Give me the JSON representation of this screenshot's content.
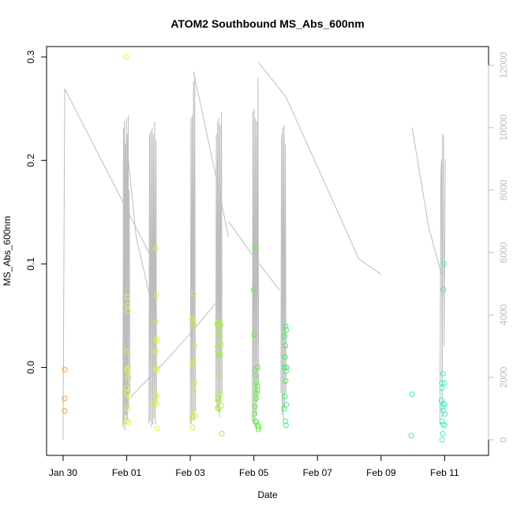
{
  "chart_data": {
    "type": "scatter",
    "title": "ATOM2 Southbound MS_Abs_600nm",
    "xlabel": "Date",
    "ylabel": "MS_Abs_600nm",
    "x_axis": {
      "unit": "days from Jan 28",
      "range": [
        1.48,
        15.38
      ],
      "ticks": [
        {
          "value": 2,
          "label": "Jan 30"
        },
        {
          "value": 4,
          "label": "Feb 01"
        },
        {
          "value": 6,
          "label": "Feb 03"
        },
        {
          "value": 8,
          "label": "Feb 05"
        },
        {
          "value": 10,
          "label": "Feb 07"
        },
        {
          "value": 12,
          "label": "Feb 09"
        },
        {
          "value": 14,
          "label": "Feb 11"
        }
      ]
    },
    "y_axis": {
      "range": [
        -0.085,
        0.31
      ],
      "ticks": [
        {
          "value": 0.0,
          "label": "0.0"
        },
        {
          "value": 0.1,
          "label": "0.1"
        },
        {
          "value": 0.2,
          "label": "0.2"
        },
        {
          "value": 0.3,
          "label": "0.3"
        }
      ]
    },
    "y2_axis": {
      "range": [
        -500,
        12600
      ],
      "color": "#bdbdbd",
      "ticks": [
        {
          "value": 0,
          "label": "0"
        },
        {
          "value": 2000,
          "label": "2000"
        },
        {
          "value": 4000,
          "label": "4000"
        },
        {
          "value": 6000,
          "label": "6000"
        },
        {
          "value": 8000,
          "label": "8000"
        },
        {
          "value": 10000,
          "label": "10000"
        },
        {
          "value": 12000,
          "label": "12000"
        }
      ]
    },
    "grid": false,
    "points": [
      {
        "x": 2.05,
        "y": -0.002,
        "color": "#f0a040"
      },
      {
        "x": 2.05,
        "y": -0.03,
        "color": "#f0a040"
      },
      {
        "x": 2.05,
        "y": -0.042,
        "color": "#f0a040"
      },
      {
        "x": 3.99,
        "y": 0.3,
        "color": "#e8f040"
      },
      {
        "x": 4.02,
        "y": 0.068,
        "color": "#e8f040"
      },
      {
        "x": 4.03,
        "y": 0.06,
        "color": "#e8f040"
      },
      {
        "x": 4.04,
        "y": 0.055,
        "color": "#e8f040"
      },
      {
        "x": 4.0,
        "y": 0.015,
        "color": "#e8f040"
      },
      {
        "x": 4.05,
        "y": 0.0,
        "color": "#e8f040"
      },
      {
        "x": 4.01,
        "y": -0.002,
        "color": "#e8f040"
      },
      {
        "x": 4.03,
        "y": -0.004,
        "color": "#e8f040"
      },
      {
        "x": 4.06,
        "y": -0.01,
        "color": "#e8f040"
      },
      {
        "x": 3.99,
        "y": -0.02,
        "color": "#e8f040"
      },
      {
        "x": 4.02,
        "y": -0.025,
        "color": "#e8f040"
      },
      {
        "x": 4.08,
        "y": -0.028,
        "color": "#e8f040"
      },
      {
        "x": 4.05,
        "y": -0.04,
        "color": "#e8f040"
      },
      {
        "x": 4.0,
        "y": -0.052,
        "color": "#e8f040"
      },
      {
        "x": 4.06,
        "y": -0.053,
        "color": "#e8f040"
      },
      {
        "x": 4.93,
        "y": 0.115,
        "color": "#dcf040"
      },
      {
        "x": 4.94,
        "y": 0.07,
        "color": "#dcf040"
      },
      {
        "x": 4.92,
        "y": 0.044,
        "color": "#dcf040"
      },
      {
        "x": 4.95,
        "y": 0.028,
        "color": "#dcf040"
      },
      {
        "x": 4.94,
        "y": 0.025,
        "color": "#dcf040"
      },
      {
        "x": 4.93,
        "y": 0.016,
        "color": "#dcf040"
      },
      {
        "x": 4.92,
        "y": 0.0,
        "color": "#dcf040"
      },
      {
        "x": 4.95,
        "y": -0.003,
        "color": "#dcf040"
      },
      {
        "x": 4.91,
        "y": -0.027,
        "color": "#dcf040"
      },
      {
        "x": 4.94,
        "y": -0.028,
        "color": "#dcf040"
      },
      {
        "x": 4.9,
        "y": -0.034,
        "color": "#dcf040"
      },
      {
        "x": 4.93,
        "y": -0.036,
        "color": "#dcf040"
      },
      {
        "x": 4.95,
        "y": -0.059,
        "color": "#dcf040"
      },
      {
        "x": 6.1,
        "y": 0.071,
        "color": "#c8f040"
      },
      {
        "x": 6.05,
        "y": 0.046,
        "color": "#c8f040"
      },
      {
        "x": 6.08,
        "y": 0.047,
        "color": "#c8f040"
      },
      {
        "x": 6.12,
        "y": 0.04,
        "color": "#c8f040"
      },
      {
        "x": 6.15,
        "y": 0.021,
        "color": "#c8f040"
      },
      {
        "x": 6.07,
        "y": 0.004,
        "color": "#c8f040"
      },
      {
        "x": 6.09,
        "y": 0.005,
        "color": "#c8f040"
      },
      {
        "x": 6.14,
        "y": -0.015,
        "color": "#c8f040"
      },
      {
        "x": 6.11,
        "y": -0.023,
        "color": "#c8f040"
      },
      {
        "x": 6.1,
        "y": -0.041,
        "color": "#c8f040"
      },
      {
        "x": 6.06,
        "y": -0.048,
        "color": "#c8f040"
      },
      {
        "x": 6.09,
        "y": -0.047,
        "color": "#c8f040"
      },
      {
        "x": 6.16,
        "y": -0.047,
        "color": "#c8f040"
      },
      {
        "x": 6.07,
        "y": -0.058,
        "color": "#c8f040"
      },
      {
        "x": 6.85,
        "y": 0.042,
        "color": "#a8f040"
      },
      {
        "x": 6.88,
        "y": 0.044,
        "color": "#a8f040"
      },
      {
        "x": 6.92,
        "y": 0.043,
        "color": "#a8f040"
      },
      {
        "x": 6.96,
        "y": 0.041,
        "color": "#a8f040"
      },
      {
        "x": 6.9,
        "y": 0.035,
        "color": "#a8f040"
      },
      {
        "x": 6.93,
        "y": 0.03,
        "color": "#a8f040"
      },
      {
        "x": 6.86,
        "y": 0.02,
        "color": "#a8f040"
      },
      {
        "x": 6.98,
        "y": 0.022,
        "color": "#a8f040"
      },
      {
        "x": 6.89,
        "y": 0.012,
        "color": "#a8f040"
      },
      {
        "x": 6.94,
        "y": 0.012,
        "color": "#a8f040"
      },
      {
        "x": 6.91,
        "y": -0.008,
        "color": "#a8f040"
      },
      {
        "x": 6.95,
        "y": -0.026,
        "color": "#a8f040"
      },
      {
        "x": 6.87,
        "y": -0.03,
        "color": "#a8f040"
      },
      {
        "x": 6.9,
        "y": -0.033,
        "color": "#a8f040"
      },
      {
        "x": 6.97,
        "y": -0.037,
        "color": "#a8f040"
      },
      {
        "x": 6.86,
        "y": -0.039,
        "color": "#a8f040"
      },
      {
        "x": 6.88,
        "y": -0.04,
        "color": "#a8f040"
      },
      {
        "x": 6.99,
        "y": -0.064,
        "color": "#a8f040"
      },
      {
        "x": 8.03,
        "y": 0.116,
        "color": "#60f040"
      },
      {
        "x": 7.99,
        "y": 0.075,
        "color": "#60f040"
      },
      {
        "x": 8.01,
        "y": 0.032,
        "color": "#60f040"
      },
      {
        "x": 8.03,
        "y": -0.002,
        "color": "#60f040"
      },
      {
        "x": 8.12,
        "y": 0.0,
        "color": "#60f040"
      },
      {
        "x": 8.06,
        "y": -0.008,
        "color": "#60f040"
      },
      {
        "x": 8.08,
        "y": -0.015,
        "color": "#60f040"
      },
      {
        "x": 8.1,
        "y": -0.018,
        "color": "#60f040"
      },
      {
        "x": 8.11,
        "y": -0.022,
        "color": "#60f040"
      },
      {
        "x": 8.09,
        "y": -0.025,
        "color": "#60f040"
      },
      {
        "x": 8.07,
        "y": -0.03,
        "color": "#60f040"
      },
      {
        "x": 8.04,
        "y": -0.038,
        "color": "#60f040"
      },
      {
        "x": 8.02,
        "y": -0.045,
        "color": "#60f040"
      },
      {
        "x": 8.05,
        "y": -0.052,
        "color": "#60f040"
      },
      {
        "x": 8.08,
        "y": -0.053,
        "color": "#60f040"
      },
      {
        "x": 8.13,
        "y": -0.056,
        "color": "#60f040"
      },
      {
        "x": 8.15,
        "y": -0.058,
        "color": "#60f040"
      },
      {
        "x": 8.14,
        "y": -0.06,
        "color": "#60f040"
      },
      {
        "x": 9.0,
        "y": 0.04,
        "color": "#40f068"
      },
      {
        "x": 9.02,
        "y": 0.036,
        "color": "#40f068"
      },
      {
        "x": 8.96,
        "y": 0.03,
        "color": "#40f068"
      },
      {
        "x": 8.99,
        "y": 0.021,
        "color": "#40f068"
      },
      {
        "x": 8.98,
        "y": 0.01,
        "color": "#40f068"
      },
      {
        "x": 8.97,
        "y": 0.0,
        "color": "#40f068"
      },
      {
        "x": 9.03,
        "y": 0.0,
        "color": "#40f068"
      },
      {
        "x": 9.01,
        "y": -0.004,
        "color": "#40f068"
      },
      {
        "x": 9.0,
        "y": -0.013,
        "color": "#40f068"
      },
      {
        "x": 8.98,
        "y": -0.028,
        "color": "#40f068"
      },
      {
        "x": 9.02,
        "y": -0.036,
        "color": "#40f068"
      },
      {
        "x": 8.95,
        "y": -0.04,
        "color": "#40f068"
      },
      {
        "x": 8.99,
        "y": -0.052,
        "color": "#40f068"
      },
      {
        "x": 9.01,
        "y": -0.056,
        "color": "#40f068"
      },
      {
        "x": 12.98,
        "y": -0.026,
        "color": "#40f0a0"
      },
      {
        "x": 12.95,
        "y": -0.066,
        "color": "#40f0a0"
      },
      {
        "x": 13.98,
        "y": 0.1,
        "color": "#40f0c0"
      },
      {
        "x": 13.96,
        "y": 0.075,
        "color": "#40f0c0"
      },
      {
        "x": 13.95,
        "y": -0.006,
        "color": "#40f0c0"
      },
      {
        "x": 13.91,
        "y": -0.015,
        "color": "#40f0c0"
      },
      {
        "x": 13.99,
        "y": -0.015,
        "color": "#40f0c0"
      },
      {
        "x": 13.92,
        "y": -0.02,
        "color": "#40f0c0"
      },
      {
        "x": 13.9,
        "y": -0.032,
        "color": "#40f0c0"
      },
      {
        "x": 13.97,
        "y": -0.035,
        "color": "#40f0c0"
      },
      {
        "x": 14.0,
        "y": -0.036,
        "color": "#40f0c0"
      },
      {
        "x": 13.93,
        "y": -0.038,
        "color": "#40f0c0"
      },
      {
        "x": 13.96,
        "y": -0.042,
        "color": "#40f0c0"
      },
      {
        "x": 14.01,
        "y": -0.045,
        "color": "#40f0c0"
      },
      {
        "x": 13.92,
        "y": -0.052,
        "color": "#40f0c0"
      },
      {
        "x": 13.95,
        "y": -0.055,
        "color": "#40f0c0"
      },
      {
        "x": 14.0,
        "y": -0.056,
        "color": "#40f0c0"
      },
      {
        "x": 13.94,
        "y": -0.064,
        "color": "#40f0c0"
      },
      {
        "x": 13.92,
        "y": -0.07,
        "color": "#40f0c0"
      }
    ],
    "secondary_series": {
      "axis": "right",
      "color": "#bdbdbd",
      "segments": [
        [
          [
            2.0,
            0
          ],
          [
            2.05,
            11250
          ],
          [
            4.9,
            5600
          ]
        ],
        [
          [
            3.88,
            400
          ],
          [
            3.9,
            10000
          ],
          [
            3.91,
            500
          ],
          [
            3.93,
            10200
          ],
          [
            3.94,
            300
          ],
          [
            3.96,
            9500
          ],
          [
            3.97,
            800
          ],
          [
            3.99,
            10300
          ],
          [
            4.0,
            500
          ],
          [
            4.02,
            9800
          ],
          [
            4.03,
            600
          ],
          [
            4.05,
            10400
          ],
          [
            4.06,
            1000
          ],
          [
            4.08,
            8000
          ],
          [
            4.1,
            1500
          ]
        ],
        [
          [
            4.05,
            9000
          ],
          [
            4.3,
            6500
          ],
          [
            4.9,
            3800
          ]
        ],
        [
          [
            4.7,
            500
          ],
          [
            4.72,
            9800
          ],
          [
            4.74,
            600
          ],
          [
            4.76,
            9900
          ],
          [
            4.78,
            400
          ],
          [
            4.8,
            10000
          ],
          [
            4.82,
            500
          ],
          [
            4.84,
            9800
          ],
          [
            4.86,
            700
          ],
          [
            4.88,
            10200
          ],
          [
            4.9,
            500
          ],
          [
            4.92,
            9600
          ],
          [
            4.94,
            1200
          ]
        ],
        [
          [
            4.15,
            1400
          ],
          [
            5.2,
            2500
          ],
          [
            6.0,
            3400
          ],
          [
            6.9,
            4500
          ]
        ],
        [
          [
            6.0,
            500
          ],
          [
            6.02,
            10300
          ],
          [
            6.04,
            500
          ],
          [
            6.06,
            10400
          ],
          [
            6.08,
            800
          ],
          [
            6.1,
            11500
          ],
          [
            6.12,
            600
          ],
          [
            6.14,
            11700
          ],
          [
            6.16,
            900
          ]
        ],
        [
          [
            6.1,
            11800
          ],
          [
            6.9,
            8000
          ],
          [
            7.2,
            6500
          ]
        ],
        [
          [
            6.8,
            1200
          ],
          [
            6.82,
            9800
          ],
          [
            6.84,
            1000
          ],
          [
            6.86,
            10200
          ],
          [
            6.88,
            900
          ],
          [
            6.9,
            10300
          ],
          [
            6.92,
            700
          ],
          [
            6.94,
            10100
          ],
          [
            6.96,
            1200
          ],
          [
            6.98,
            10500
          ],
          [
            7.0,
            1500
          ]
        ],
        [
          [
            7.95,
            600
          ],
          [
            7.97,
            10500
          ],
          [
            7.99,
            500
          ],
          [
            8.01,
            10600
          ],
          [
            8.03,
            400
          ],
          [
            8.05,
            10300
          ],
          [
            8.07,
            800
          ],
          [
            8.09,
            10200
          ],
          [
            8.11,
            1200
          ],
          [
            8.13,
            11600
          ],
          [
            8.15,
            1800
          ]
        ],
        [
          [
            8.14,
            12100
          ],
          [
            9.0,
            11000
          ],
          [
            9.8,
            9200
          ],
          [
            11.3,
            5800
          ],
          [
            12.0,
            5300
          ]
        ],
        [
          [
            7.2,
            7000
          ],
          [
            7.9,
            6000
          ],
          [
            8.8,
            4800
          ]
        ],
        [
          [
            8.85,
            1500
          ],
          [
            8.87,
            9800
          ],
          [
            8.89,
            800
          ],
          [
            8.91,
            10000
          ],
          [
            8.93,
            600
          ],
          [
            8.95,
            10100
          ],
          [
            8.97,
            1000
          ],
          [
            8.99,
            9500
          ],
          [
            9.01,
            1500
          ]
        ],
        [
          [
            12.98,
            10000
          ],
          [
            13.5,
            6800
          ],
          [
            13.9,
            5300
          ]
        ],
        [
          [
            13.85,
            500
          ],
          [
            13.88,
            8500
          ],
          [
            13.9,
            9000
          ],
          [
            13.92,
            700
          ],
          [
            13.94,
            9800
          ],
          [
            13.96,
            9700
          ],
          [
            13.98,
            3000
          ],
          [
            14.02,
            9000
          ]
        ]
      ]
    }
  }
}
